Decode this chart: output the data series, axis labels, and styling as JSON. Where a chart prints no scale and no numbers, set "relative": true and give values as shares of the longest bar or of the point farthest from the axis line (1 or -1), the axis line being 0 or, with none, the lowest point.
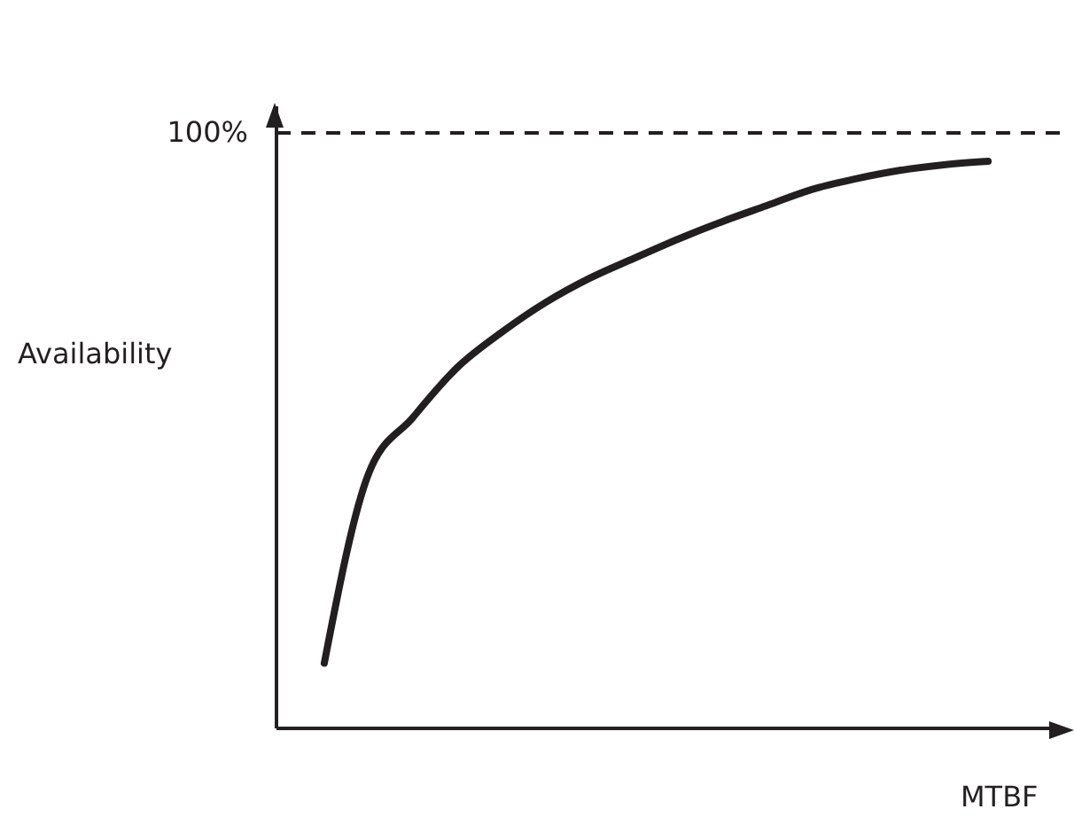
{
  "chart_data": {
    "type": "line",
    "relative": true,
    "xlabel": "MTBF",
    "ylabel": "Availability",
    "categories": [
      null,
      null,
      null,
      null,
      null,
      null,
      null,
      null,
      null,
      null,
      null,
      null,
      null,
      null,
      null,
      null
    ],
    "series": [
      {
        "color": "#231f20",
        "values": [
          0.115,
          0.449,
          0.548,
          0.636,
          0.698,
          0.751,
          0.794,
          0.829,
          0.863,
          0.894,
          0.922,
          0.95,
          0.969,
          0.984,
          0.994,
          1
        ]
      }
    ],
    "ref_lines": [
      {
        "axis": "y",
        "value": 1.05,
        "color": "#231f20",
        "line_style": "dashed"
      }
    ],
    "annotations": [
      "100%"
    ],
    "grid": false,
    "legend": false,
    "marker": "none",
    "line_style": "solid"
  }
}
